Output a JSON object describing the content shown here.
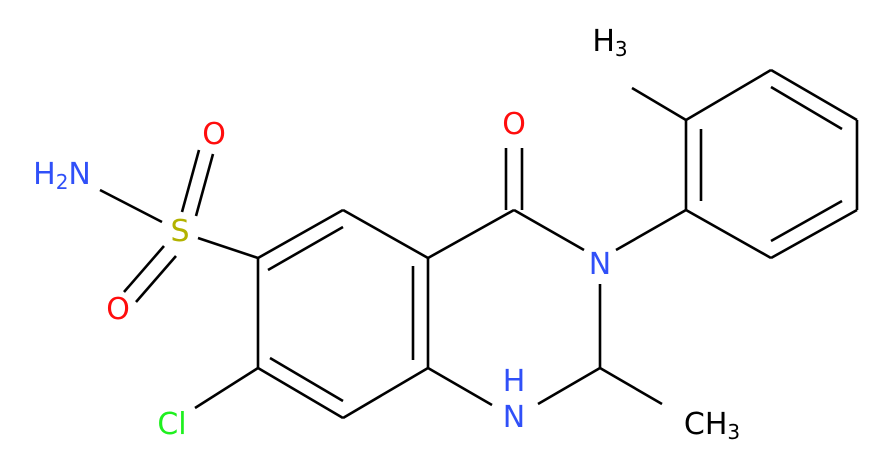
{
  "atoms": [
    {
      "parts": [
        "H",
        "2",
        "N"
      ],
      "color": "#3050f8"
    },
    {
      "parts": [
        "S"
      ],
      "color": "#b2b200"
    },
    {
      "parts": [
        "O"
      ],
      "color": "#ff0d0d"
    },
    {
      "parts": [
        "O"
      ],
      "color": "#ff0d0d"
    },
    {
      "parts": [
        "O"
      ],
      "color": "#ff0d0d"
    },
    {
      "parts": [
        "N"
      ],
      "color": "#3050f8"
    },
    {
      "parts": [
        "H"
      ],
      "color": "#3050f8"
    },
    {
      "parts": [
        "N"
      ],
      "color": "#3050f8"
    },
    {
      "parts": [
        "Cl"
      ],
      "color": "#1ff01f"
    },
    {
      "parts": [
        "CH",
        "3"
      ],
      "color": "#000000"
    },
    {
      "parts": [
        "H",
        "3"
      ],
      "color": "#000000"
    }
  ]
}
